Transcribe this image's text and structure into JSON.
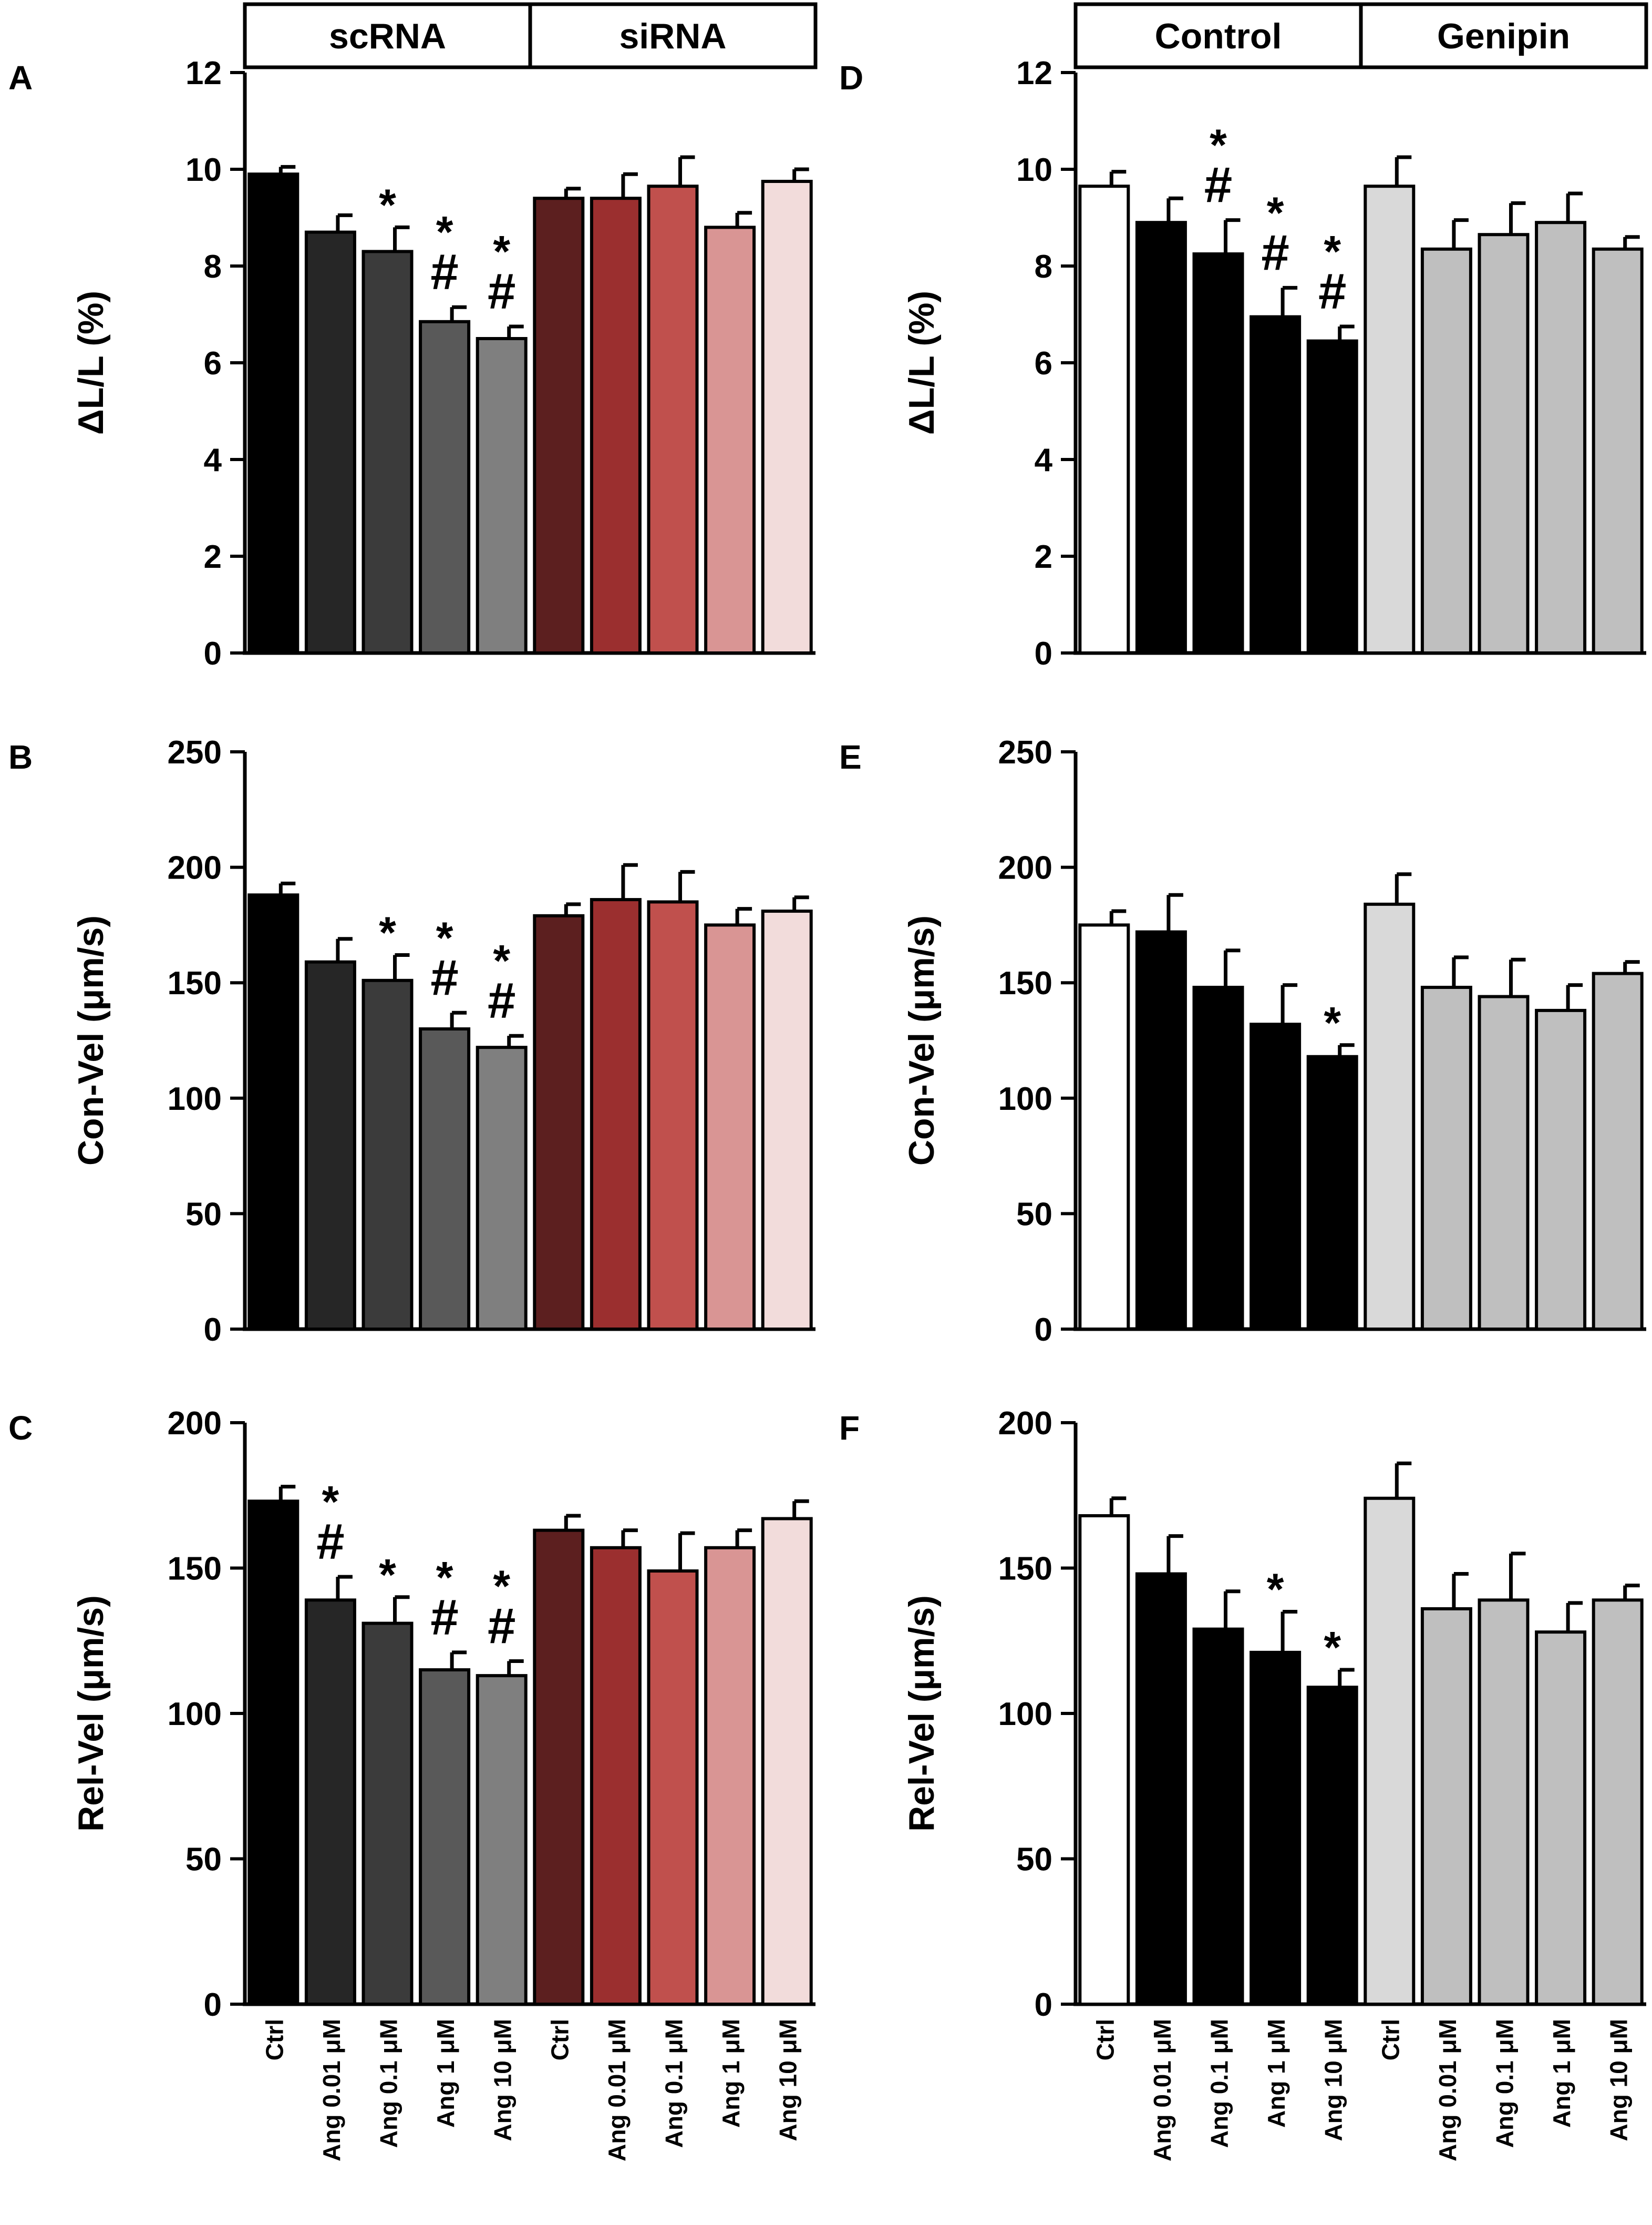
{
  "chart_data": [
    {
      "type": "bar",
      "panel_label": "A",
      "ylabel": "ΔL/L (%)",
      "ylim": [
        0,
        12
      ],
      "yticks": [
        0,
        2,
        4,
        6,
        8,
        10,
        12
      ],
      "groups": [
        "scRNA",
        "siRNA"
      ],
      "categories": [
        "Ctrl",
        "Ang 0.01 μM",
        "Ang 0.1 μM",
        "Ang 1 μM",
        "Ang 10 μM",
        "Ctrl",
        "Ang 0.01 μM",
        "Ang 0.1 μM",
        "Ang 1 μM",
        "Ang 10 μM"
      ],
      "values": [
        9.9,
        8.7,
        8.3,
        6.85,
        6.5,
        9.4,
        9.4,
        9.65,
        8.8,
        9.75
      ],
      "errors": [
        0.15,
        0.35,
        0.5,
        0.3,
        0.25,
        0.2,
        0.5,
        0.6,
        0.3,
        0.25
      ],
      "colors": [
        "#000000",
        "#262626",
        "#3b3b3b",
        "#595959",
        "#7f7f7f",
        "#5c1f1f",
        "#9b2f2f",
        "#c0504d",
        "#d99594",
        "#f2dcdb"
      ],
      "annotations": [
        [],
        [],
        [
          "*"
        ],
        [
          "*",
          "#"
        ],
        [
          "*",
          "#"
        ],
        [],
        [],
        [],
        [],
        []
      ],
      "show_xlabels": false
    },
    {
      "type": "bar",
      "panel_label": "B",
      "ylabel": "Con-Vel (μm/s)",
      "ylim": [
        0,
        250
      ],
      "yticks": [
        0,
        50,
        100,
        150,
        200,
        250
      ],
      "categories": [
        "Ctrl",
        "Ang 0.01 μM",
        "Ang 0.1 μM",
        "Ang 1 μM",
        "Ang 10 μM",
        "Ctrl",
        "Ang 0.01 μM",
        "Ang 0.1 μM",
        "Ang 1 μM",
        "Ang 10 μM"
      ],
      "values": [
        188,
        159,
        151,
        130,
        122,
        179,
        186,
        185,
        175,
        181
      ],
      "errors": [
        5,
        10,
        11,
        7,
        5,
        5,
        15,
        13,
        7,
        6
      ],
      "colors": [
        "#000000",
        "#262626",
        "#3b3b3b",
        "#595959",
        "#7f7f7f",
        "#5c1f1f",
        "#9b2f2f",
        "#c0504d",
        "#d99594",
        "#f2dcdb"
      ],
      "annotations": [
        [],
        [],
        [
          "*"
        ],
        [
          "*",
          "#"
        ],
        [
          "*",
          "#"
        ],
        [],
        [],
        [],
        [],
        []
      ],
      "show_xlabels": false
    },
    {
      "type": "bar",
      "panel_label": "C",
      "ylabel": "Rel-Vel (μm/s)",
      "ylim": [
        0,
        200
      ],
      "yticks": [
        0,
        50,
        100,
        150,
        200
      ],
      "categories": [
        "Ctrl",
        "Ang 0.01 μM",
        "Ang 0.1 μM",
        "Ang 1 μM",
        "Ang 10 μM",
        "Ctrl",
        "Ang 0.01 μM",
        "Ang 0.1 μM",
        "Ang 1 μM",
        "Ang 10 μM"
      ],
      "values": [
        173,
        139,
        131,
        115,
        113,
        163,
        157,
        149,
        157,
        167
      ],
      "errors": [
        5,
        8,
        9,
        6,
        5,
        5,
        6,
        13,
        6,
        6
      ],
      "colors": [
        "#000000",
        "#262626",
        "#3b3b3b",
        "#595959",
        "#7f7f7f",
        "#5c1f1f",
        "#9b2f2f",
        "#c0504d",
        "#d99594",
        "#f2dcdb"
      ],
      "annotations": [
        [],
        [
          "*",
          "#"
        ],
        [
          "*"
        ],
        [
          "*",
          "#"
        ],
        [
          "*",
          "#"
        ],
        [],
        [],
        [],
        [],
        []
      ],
      "show_xlabels": true
    },
    {
      "type": "bar",
      "panel_label": "D",
      "ylabel": "ΔL/L (%)",
      "ylim": [
        0,
        12
      ],
      "yticks": [
        0,
        2,
        4,
        6,
        8,
        10,
        12
      ],
      "groups": [
        "Control",
        "Genipin"
      ],
      "categories": [
        "Ctrl",
        "Ang 0.01 μM",
        "Ang 0.1 μM",
        "Ang 1 μM",
        "Ang 10 μM",
        "Ctrl",
        "Ang 0.01 μM",
        "Ang 0.1 μM",
        "Ang 1 μM",
        "Ang 10 μM"
      ],
      "values": [
        9.65,
        8.9,
        8.25,
        6.95,
        6.45,
        9.65,
        8.35,
        8.65,
        8.9,
        8.35
      ],
      "errors": [
        0.3,
        0.5,
        0.7,
        0.6,
        0.3,
        0.6,
        0.6,
        0.65,
        0.6,
        0.25
      ],
      "colors": [
        "#ffffff",
        "#000000",
        "#000000",
        "#000000",
        "#000000",
        "#d9d9d9",
        "#bfbfbf",
        "#bfbfbf",
        "#bfbfbf",
        "#bfbfbf"
      ],
      "annotations": [
        [],
        [],
        [
          "*",
          "#"
        ],
        [
          "*",
          "#"
        ],
        [
          "*",
          "#"
        ],
        [],
        [],
        [],
        [],
        []
      ],
      "show_xlabels": false
    },
    {
      "type": "bar",
      "panel_label": "E",
      "ylabel": "Con-Vel (μm/s)",
      "ylim": [
        0,
        250
      ],
      "yticks": [
        0,
        50,
        100,
        150,
        200,
        250
      ],
      "categories": [
        "Ctrl",
        "Ang 0.01 μM",
        "Ang 0.1 μM",
        "Ang 1 μM",
        "Ang 10 μM",
        "Ctrl",
        "Ang 0.01 μM",
        "Ang 0.1 μM",
        "Ang 1 μM",
        "Ang 10 μM"
      ],
      "values": [
        175,
        172,
        148,
        132,
        118,
        184,
        148,
        144,
        138,
        154
      ],
      "errors": [
        6,
        16,
        16,
        17,
        5,
        13,
        13,
        16,
        11,
        5
      ],
      "colors": [
        "#ffffff",
        "#000000",
        "#000000",
        "#000000",
        "#000000",
        "#d9d9d9",
        "#bfbfbf",
        "#bfbfbf",
        "#bfbfbf",
        "#bfbfbf"
      ],
      "annotations": [
        [],
        [],
        [],
        [],
        [
          "*"
        ],
        [],
        [],
        [],
        [],
        []
      ],
      "show_xlabels": false
    },
    {
      "type": "bar",
      "panel_label": "F",
      "ylabel": "Rel-Vel (μm/s)",
      "ylim": [
        0,
        200
      ],
      "yticks": [
        0,
        50,
        100,
        150,
        200
      ],
      "categories": [
        "Ctrl",
        "Ang 0.01 μM",
        "Ang 0.1 μM",
        "Ang 1 μM",
        "Ang 10 μM",
        "Ctrl",
        "Ang 0.01 μM",
        "Ang 0.1 μM",
        "Ang 1 μM",
        "Ang 10 μM"
      ],
      "values": [
        168,
        148,
        129,
        121,
        109,
        174,
        136,
        139,
        128,
        139
      ],
      "errors": [
        6,
        13,
        13,
        14,
        6,
        12,
        12,
        16,
        10,
        5
      ],
      "colors": [
        "#ffffff",
        "#000000",
        "#000000",
        "#000000",
        "#000000",
        "#d9d9d9",
        "#bfbfbf",
        "#bfbfbf",
        "#bfbfbf",
        "#bfbfbf"
      ],
      "annotations": [
        [],
        [],
        [],
        [
          "*"
        ],
        [
          "*"
        ],
        [],
        [],
        [],
        [],
        []
      ],
      "show_xlabels": true
    }
  ]
}
